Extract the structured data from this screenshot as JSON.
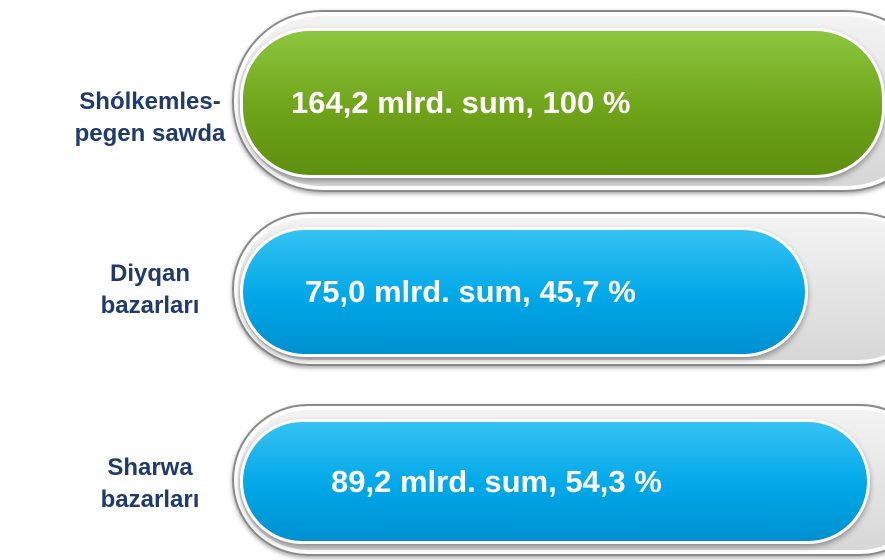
{
  "rows": [
    {
      "label": "Shólkemles-\npegen sawda",
      "text": "164,2 mlrd. sum, 100 %"
    },
    {
      "label": "Diyqan\nbazarları",
      "text": "75,0 mlrd. sum, 45,7 %"
    },
    {
      "label": "Sharwa\nbazarları",
      "text": "89,2 mlrd. sum, 54,3 %"
    }
  ]
}
